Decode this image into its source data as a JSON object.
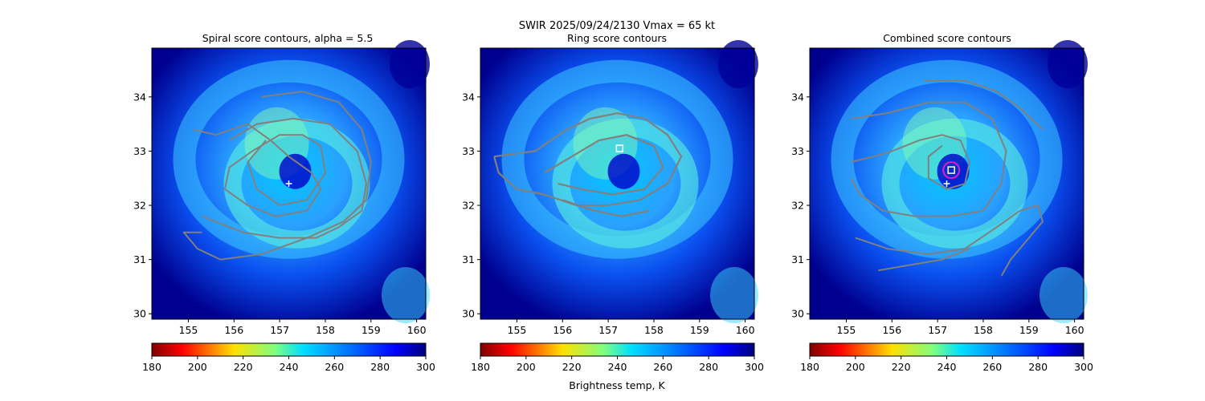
{
  "suptitle": "SWIR  2025/09/24/2130    Vmax = 65 kt",
  "colorbar_label": "Brightness temp, K",
  "chart_data": [
    {
      "type": "heatmap",
      "title": "Spiral score contours, alpha =  5.5",
      "xlabel": "",
      "ylabel": "",
      "xlim": [
        154.2,
        160.2
      ],
      "ylim": [
        29.9,
        34.9
      ],
      "xticks": [
        155,
        156,
        157,
        158,
        159,
        160
      ],
      "yticks": [
        30,
        31,
        32,
        33,
        34
      ],
      "markers": {
        "plus": [
          157.2,
          32.4
        ]
      },
      "contours": [
        [
          [
            155.1,
            33.4
          ],
          [
            155.6,
            33.3
          ],
          [
            156.3,
            33.5
          ],
          [
            156.8,
            33.2
          ],
          [
            157.2,
            32.9
          ],
          [
            157.7,
            32.6
          ],
          [
            157.9,
            32.3
          ],
          [
            157.6,
            31.9
          ],
          [
            156.9,
            31.8
          ],
          [
            156.3,
            32.0
          ],
          [
            155.8,
            32.3
          ],
          [
            155.9,
            32.7
          ],
          [
            156.4,
            33.0
          ],
          [
            157.0,
            33.3
          ],
          [
            157.5,
            33.3
          ],
          [
            157.9,
            33.1
          ],
          [
            158.0,
            32.6
          ],
          [
            157.6,
            32.1
          ],
          [
            157.0,
            32.0
          ],
          [
            156.5,
            32.3
          ],
          [
            156.3,
            32.8
          ],
          [
            156.7,
            33.2
          ]
        ],
        [
          [
            156.6,
            34.0
          ],
          [
            157.5,
            34.1
          ],
          [
            158.3,
            33.9
          ],
          [
            158.8,
            33.4
          ],
          [
            159.0,
            32.8
          ],
          [
            158.9,
            32.1
          ],
          [
            158.4,
            31.7
          ],
          [
            157.6,
            31.4
          ],
          [
            156.6,
            31.1
          ],
          [
            155.7,
            31.0
          ],
          [
            155.2,
            31.2
          ],
          [
            154.9,
            31.5
          ],
          [
            155.3,
            31.5
          ]
        ],
        [
          [
            155.3,
            31.8
          ],
          [
            156.2,
            31.5
          ],
          [
            157.0,
            31.4
          ],
          [
            157.8,
            31.4
          ],
          [
            158.3,
            31.6
          ],
          [
            158.8,
            31.9
          ],
          [
            158.9,
            32.4
          ],
          [
            158.7,
            33.0
          ],
          [
            158.1,
            33.5
          ],
          [
            157.3,
            33.6
          ],
          [
            156.5,
            33.5
          ],
          [
            155.9,
            33.2
          ]
        ]
      ]
    },
    {
      "type": "heatmap",
      "title": "Ring score contours",
      "xlabel": "",
      "ylabel": "",
      "xlim": [
        154.2,
        160.2
      ],
      "ylim": [
        29.9,
        34.9
      ],
      "xticks": [
        155,
        156,
        157,
        158,
        159,
        160
      ],
      "yticks": [
        30,
        31,
        32,
        33,
        34
      ],
      "markers": {
        "square": [
          157.25,
          33.05
        ]
      },
      "contours": [
        [
          [
            154.5,
            32.9
          ],
          [
            155.4,
            33.0
          ],
          [
            156.1,
            33.4
          ],
          [
            156.6,
            33.6
          ],
          [
            157.2,
            33.7
          ],
          [
            157.8,
            33.6
          ],
          [
            158.3,
            33.3
          ],
          [
            158.6,
            32.9
          ],
          [
            158.3,
            32.4
          ],
          [
            157.7,
            32.1
          ],
          [
            157.0,
            32.0
          ],
          [
            156.3,
            32.0
          ],
          [
            155.6,
            32.2
          ],
          [
            155.0,
            32.3
          ],
          [
            154.6,
            32.6
          ],
          [
            154.5,
            32.9
          ]
        ],
        [
          [
            155.6,
            32.6
          ],
          [
            156.2,
            32.9
          ],
          [
            156.8,
            33.2
          ],
          [
            157.4,
            33.3
          ],
          [
            158.0,
            33.1
          ],
          [
            158.2,
            32.7
          ],
          [
            157.8,
            32.3
          ],
          [
            157.1,
            32.2
          ],
          [
            156.4,
            32.3
          ],
          [
            155.9,
            32.4
          ]
        ],
        [
          [
            156.0,
            32.1
          ],
          [
            156.7,
            31.9
          ],
          [
            157.3,
            31.8
          ],
          [
            157.9,
            31.9
          ]
        ]
      ]
    },
    {
      "type": "heatmap",
      "title": "Combined score contours",
      "xlabel": "",
      "ylabel": "",
      "xlim": [
        154.2,
        160.2
      ],
      "ylim": [
        29.9,
        34.9
      ],
      "xticks": [
        155,
        156,
        157,
        158,
        159,
        160
      ],
      "yticks": [
        30,
        31,
        32,
        33,
        34
      ],
      "markers": {
        "plus": [
          157.2,
          32.4
        ],
        "square": [
          157.3,
          32.65
        ],
        "circle": [
          157.3,
          32.65
        ]
      },
      "contours": [
        [
          [
            156.7,
            34.3
          ],
          [
            157.6,
            34.3
          ],
          [
            158.3,
            34.1
          ],
          [
            158.8,
            33.8
          ],
          [
            159.3,
            33.4
          ]
        ],
        [
          [
            155.1,
            33.6
          ],
          [
            155.9,
            33.7
          ],
          [
            156.8,
            33.9
          ],
          [
            157.6,
            33.9
          ],
          [
            158.2,
            33.6
          ],
          [
            158.5,
            33.0
          ],
          [
            158.4,
            32.4
          ],
          [
            158.0,
            31.9
          ],
          [
            157.3,
            31.8
          ],
          [
            156.5,
            31.8
          ],
          [
            155.8,
            31.9
          ],
          [
            155.3,
            32.2
          ],
          [
            155.1,
            32.5
          ]
        ],
        [
          [
            155.1,
            32.8
          ],
          [
            155.6,
            32.9
          ],
          [
            156.0,
            33.0
          ],
          [
            156.6,
            33.2
          ],
          [
            157.1,
            33.3
          ],
          [
            157.5,
            33.2
          ],
          [
            157.7,
            32.8
          ],
          [
            157.6,
            32.4
          ],
          [
            157.2,
            32.3
          ],
          [
            156.8,
            32.5
          ],
          [
            156.8,
            32.9
          ],
          [
            157.1,
            33.1
          ]
        ],
        [
          [
            155.2,
            31.4
          ],
          [
            155.9,
            31.2
          ],
          [
            156.8,
            31.1
          ],
          [
            157.6,
            31.2
          ],
          [
            158.3,
            31.6
          ],
          [
            158.8,
            31.9
          ],
          [
            159.2,
            32.0
          ],
          [
            159.3,
            31.7
          ],
          [
            158.9,
            31.3
          ],
          [
            158.6,
            31.0
          ],
          [
            158.4,
            30.7
          ]
        ],
        [
          [
            155.7,
            30.8
          ],
          [
            156.4,
            30.9
          ],
          [
            157.1,
            31.0
          ],
          [
            157.7,
            31.2
          ]
        ]
      ]
    }
  ],
  "colorbar": {
    "vmin": 180,
    "vmax": 300,
    "ticks": [
      180,
      200,
      220,
      240,
      260,
      280,
      300
    ],
    "colormap": "jet_r"
  }
}
